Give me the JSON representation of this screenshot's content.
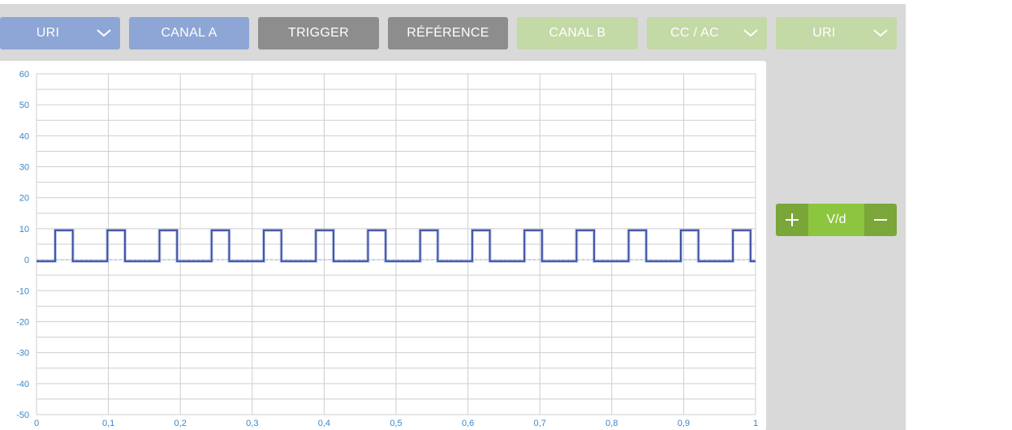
{
  "toolbar": {
    "buttons": [
      {
        "label": "URI",
        "dropdown": true,
        "style": "blue"
      },
      {
        "label": "CANAL A",
        "dropdown": false,
        "style": "blue"
      },
      {
        "label": "TRIGGER",
        "dropdown": false,
        "style": "gray"
      },
      {
        "label": "RÉFÉRENCE",
        "dropdown": false,
        "style": "gray"
      },
      {
        "label": "CANAL B",
        "dropdown": false,
        "style": "green"
      },
      {
        "label": "CC / AC",
        "dropdown": true,
        "style": "green"
      },
      {
        "label": "URI",
        "dropdown": true,
        "style": "green"
      }
    ]
  },
  "volts_per_div": {
    "label": "V/d",
    "plus_icon": "plus-icon",
    "minus_icon": "minus-icon"
  },
  "colors": {
    "blue_button": "#8ea6d6",
    "gray_button": "#8d8d8d",
    "green_button": "#c3d9a6",
    "vdiv_dark": "#7aa63a",
    "vdiv_light": "#8cc63f",
    "trace": "#3a4aa0",
    "tick_label": "#3a86c8",
    "grid": "#cfcfcf"
  },
  "chart_data": {
    "type": "line",
    "title": "",
    "xlabel": "",
    "ylabel": "",
    "xlim": [
      0,
      1
    ],
    "ylim": [
      -50,
      60
    ],
    "grid": true,
    "legend": "none",
    "x_ticks": [
      "0",
      "0,1",
      "0,2",
      "0,3",
      "0,4",
      "0,5",
      "0,6",
      "0,7",
      "0,8",
      "0,9",
      "1"
    ],
    "y_ticks": [
      "60",
      "50",
      "40",
      "30",
      "20",
      "10",
      "0",
      "-10",
      "-20",
      "-30",
      "-40",
      "-50"
    ],
    "series": [
      {
        "name": "",
        "waveform": "square",
        "period": 0.0725,
        "high": 9.5,
        "low": -0.5,
        "first_rise": 0.026,
        "high_duration": 0.0245,
        "x": [
          0,
          0.026,
          0.026,
          0.0505,
          0.0505,
          0.0985,
          0.0985,
          0.123,
          0.123,
          0.171,
          0.171,
          0.1955,
          0.1955,
          0.2435,
          0.2435,
          0.268,
          0.268,
          0.316,
          0.316,
          0.3405,
          0.3405,
          0.3885,
          0.3885,
          0.413,
          0.413,
          0.461,
          0.461,
          0.4855,
          0.4855,
          0.5335,
          0.5335,
          0.558,
          0.558,
          0.606,
          0.606,
          0.6305,
          0.6305,
          0.6785,
          0.6785,
          0.703,
          0.703,
          0.751,
          0.751,
          0.7755,
          0.7755,
          0.8235,
          0.8235,
          0.848,
          0.848,
          0.896,
          0.896,
          0.9205,
          0.9205,
          0.9685,
          0.9685,
          0.993,
          0.993,
          1
        ],
        "y": [
          -0.5,
          -0.5,
          9.5,
          9.5,
          -0.5,
          -0.5,
          9.5,
          9.5,
          -0.5,
          -0.5,
          9.5,
          9.5,
          -0.5,
          -0.5,
          9.5,
          9.5,
          -0.5,
          -0.5,
          9.5,
          9.5,
          -0.5,
          -0.5,
          9.5,
          9.5,
          -0.5,
          -0.5,
          9.5,
          9.5,
          -0.5,
          -0.5,
          9.5,
          9.5,
          -0.5,
          -0.5,
          9.5,
          9.5,
          -0.5,
          -0.5,
          9.5,
          9.5,
          -0.5,
          -0.5,
          9.5,
          9.5,
          -0.5,
          -0.5,
          9.5,
          9.5,
          -0.5,
          -0.5,
          9.5,
          9.5,
          -0.5,
          -0.5,
          9.5,
          9.5,
          -0.5,
          -0.5
        ]
      }
    ]
  }
}
